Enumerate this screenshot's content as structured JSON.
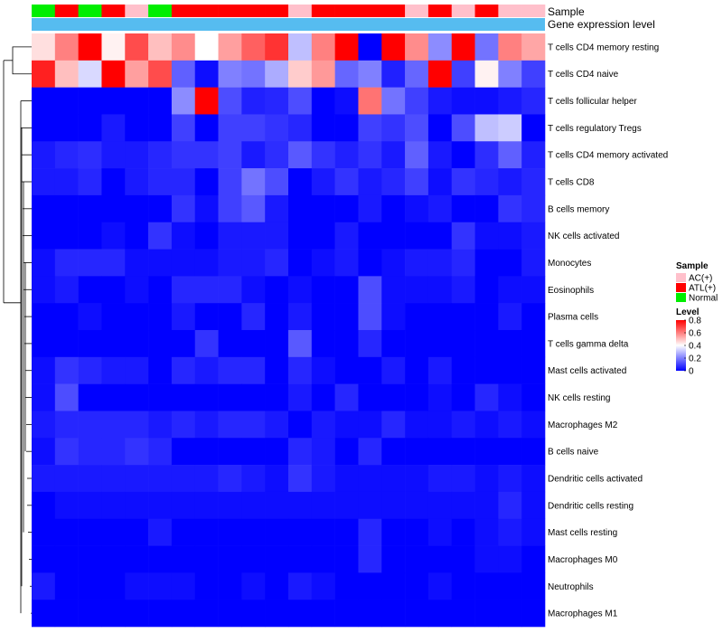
{
  "chart_data": {
    "type": "heatmap",
    "annotation_labels": {
      "sample": "Sample",
      "gene": "Gene expression level"
    },
    "sample_groups": [
      "Normal",
      "ATL(+)",
      "Normal",
      "ATL(+)",
      "AC(+)",
      "Normal",
      "ATL(+)",
      "ATL(+)",
      "ATL(+)",
      "ATL(+)",
      "ATL(+)",
      "AC(+)",
      "ATL(+)",
      "ATL(+)",
      "ATL(+)",
      "ATL(+)",
      "AC(+)",
      "ATL(+)",
      "AC(+)",
      "ATL(+)",
      "AC(+)",
      "AC(+)"
    ],
    "sample_colors": {
      "AC(+)": "#FFC0CB",
      "ATL(+)": "#FF0000",
      "Normal": "#00EE00"
    },
    "gene_level_color": "#56BCF0",
    "rows": [
      "T cells CD4 memory resting",
      "T cells CD4 naive",
      "T cells follicular helper",
      "T cells regulatory  Tregs",
      "T cells CD4 memory activated",
      "T cells CD8",
      "B cells memory",
      "NK cells activated",
      "Monocytes",
      "Eosinophils",
      "Plasma cells",
      "T cells gamma delta",
      "Mast cells activated",
      "NK cells resting",
      "Macrophages M2",
      "B cells naive",
      "Dendritic cells activated",
      "Dendritic cells resting",
      "Mast cells resting",
      "Macrophages M0",
      "Neutrophils",
      "Macrophages M1"
    ],
    "values": [
      [
        0.45,
        0.6,
        0.8,
        0.42,
        0.68,
        0.5,
        0.58,
        0.4,
        0.55,
        0.65,
        0.72,
        0.3,
        0.6,
        0.8,
        0.0,
        0.8,
        0.58,
        0.22,
        0.8,
        0.18,
        0.6,
        0.54
      ],
      [
        0.75,
        0.5,
        0.34,
        0.8,
        0.55,
        0.68,
        0.15,
        0.02,
        0.2,
        0.18,
        0.27,
        0.48,
        0.56,
        0.16,
        0.2,
        0.05,
        0.16,
        0.8,
        0.1,
        0.42,
        0.2,
        0.1
      ],
      [
        0.0,
        0.0,
        0.0,
        0.0,
        0.0,
        0.0,
        0.22,
        0.82,
        0.12,
        0.05,
        0.06,
        0.12,
        0.0,
        0.02,
        0.62,
        0.18,
        0.1,
        0.04,
        0.02,
        0.02,
        0.04,
        0.06
      ],
      [
        0.0,
        0.0,
        0.0,
        0.04,
        0.0,
        0.0,
        0.1,
        0.0,
        0.1,
        0.1,
        0.08,
        0.06,
        0.0,
        0.0,
        0.1,
        0.08,
        0.12,
        0.0,
        0.12,
        0.3,
        0.32,
        0.0
      ],
      [
        0.04,
        0.06,
        0.07,
        0.04,
        0.04,
        0.06,
        0.08,
        0.08,
        0.1,
        0.04,
        0.07,
        0.14,
        0.08,
        0.05,
        0.08,
        0.04,
        0.15,
        0.04,
        0.0,
        0.07,
        0.15,
        0.05
      ],
      [
        0.04,
        0.04,
        0.06,
        0.0,
        0.04,
        0.06,
        0.06,
        0.0,
        0.1,
        0.18,
        0.12,
        0.0,
        0.04,
        0.08,
        0.04,
        0.06,
        0.1,
        0.02,
        0.08,
        0.06,
        0.04,
        0.06
      ],
      [
        0.0,
        0.0,
        0.0,
        0.0,
        0.0,
        0.0,
        0.08,
        0.02,
        0.1,
        0.14,
        0.04,
        0.0,
        0.0,
        0.0,
        0.04,
        0.0,
        0.02,
        0.04,
        0.0,
        0.0,
        0.08,
        0.06
      ],
      [
        0.0,
        0.0,
        0.0,
        0.02,
        0.0,
        0.08,
        0.02,
        0.0,
        0.04,
        0.04,
        0.04,
        0.0,
        0.0,
        0.04,
        0.0,
        0.0,
        0.0,
        0.0,
        0.08,
        0.02,
        0.02,
        0.04
      ],
      [
        0.02,
        0.06,
        0.06,
        0.06,
        0.02,
        0.02,
        0.02,
        0.02,
        0.04,
        0.04,
        0.06,
        0.0,
        0.02,
        0.04,
        0.0,
        0.02,
        0.04,
        0.04,
        0.06,
        0.0,
        0.0,
        0.04
      ],
      [
        0.02,
        0.04,
        0.0,
        0.0,
        0.02,
        0.0,
        0.06,
        0.06,
        0.06,
        0.02,
        0.0,
        0.02,
        0.0,
        0.0,
        0.12,
        0.02,
        0.02,
        0.02,
        0.04,
        0.0,
        0.02,
        0.02
      ],
      [
        0.0,
        0.0,
        0.02,
        0.0,
        0.0,
        0.0,
        0.04,
        0.0,
        0.0,
        0.06,
        0.0,
        0.04,
        0.0,
        0.0,
        0.12,
        0.02,
        0.0,
        0.0,
        0.0,
        0.0,
        0.04,
        0.0
      ],
      [
        0.0,
        0.0,
        0.0,
        0.0,
        0.0,
        0.0,
        0.0,
        0.08,
        0.0,
        0.0,
        0.0,
        0.14,
        0.0,
        0.0,
        0.06,
        0.0,
        0.0,
        0.0,
        0.0,
        0.0,
        0.0,
        0.0
      ],
      [
        0.02,
        0.08,
        0.06,
        0.04,
        0.04,
        0.0,
        0.06,
        0.04,
        0.06,
        0.06,
        0.0,
        0.06,
        0.02,
        0.0,
        0.0,
        0.04,
        0.0,
        0.04,
        0.0,
        0.0,
        0.0,
        0.0
      ],
      [
        0.02,
        0.12,
        0.0,
        0.0,
        0.0,
        0.0,
        0.0,
        0.0,
        0.0,
        0.0,
        0.0,
        0.04,
        0.0,
        0.06,
        0.0,
        0.0,
        0.0,
        0.02,
        0.0,
        0.06,
        0.02,
        0.0
      ],
      [
        0.04,
        0.06,
        0.06,
        0.06,
        0.06,
        0.04,
        0.06,
        0.04,
        0.06,
        0.06,
        0.04,
        0.0,
        0.04,
        0.02,
        0.02,
        0.06,
        0.02,
        0.02,
        0.04,
        0.02,
        0.04,
        0.02
      ],
      [
        0.02,
        0.08,
        0.06,
        0.06,
        0.08,
        0.06,
        0.0,
        0.0,
        0.0,
        0.0,
        0.0,
        0.06,
        0.04,
        0.0,
        0.06,
        0.0,
        0.0,
        0.0,
        0.0,
        0.0,
        0.0,
        0.0
      ],
      [
        0.04,
        0.04,
        0.04,
        0.04,
        0.04,
        0.04,
        0.04,
        0.04,
        0.06,
        0.04,
        0.02,
        0.08,
        0.04,
        0.02,
        0.02,
        0.02,
        0.02,
        0.04,
        0.04,
        0.02,
        0.04,
        0.02
      ],
      [
        0.0,
        0.02,
        0.02,
        0.02,
        0.02,
        0.02,
        0.02,
        0.02,
        0.02,
        0.02,
        0.02,
        0.02,
        0.02,
        0.02,
        0.02,
        0.02,
        0.02,
        0.02,
        0.02,
        0.02,
        0.06,
        0.02
      ],
      [
        0.0,
        0.0,
        0.0,
        0.0,
        0.0,
        0.04,
        0.0,
        0.0,
        0.0,
        0.0,
        0.0,
        0.0,
        0.0,
        0.0,
        0.06,
        0.0,
        0.0,
        0.02,
        0.0,
        0.02,
        0.04,
        0.02
      ],
      [
        0.0,
        0.0,
        0.0,
        0.0,
        0.0,
        0.0,
        0.0,
        0.0,
        0.0,
        0.0,
        0.0,
        0.0,
        0.0,
        0.0,
        0.06,
        0.0,
        0.0,
        0.0,
        0.0,
        0.02,
        0.02,
        0.0
      ],
      [
        0.04,
        0.0,
        0.0,
        0.0,
        0.02,
        0.02,
        0.02,
        0.0,
        0.0,
        0.02,
        0.0,
        0.04,
        0.02,
        0.0,
        0.0,
        0.0,
        0.0,
        0.02,
        0.0,
        0.0,
        0.0,
        0.0
      ],
      [
        0.0,
        0.0,
        0.0,
        0.0,
        0.0,
        0.0,
        0.0,
        0.0,
        0.0,
        0.0,
        0.0,
        0.0,
        0.0,
        0.0,
        0.0,
        0.0,
        0.0,
        0.0,
        0.0,
        0.0,
        0.0,
        0.0
      ]
    ],
    "color_scale": {
      "low": "#0000FF",
      "mid": "#FFFFFF",
      "high": "#FF0000",
      "min": 0,
      "mid_value": 0.4,
      "max": 0.8
    },
    "legend": {
      "sample_title": "Sample",
      "sample_entries": [
        "AC(+)",
        "ATL(+)",
        "Normal"
      ],
      "level_title": "Level",
      "level_ticks": [
        "0.8",
        "0.6",
        "0.4",
        "0.2",
        "0"
      ],
      "level_tick_values": [
        0.8,
        0.6,
        0.4,
        0.2,
        0
      ]
    }
  }
}
